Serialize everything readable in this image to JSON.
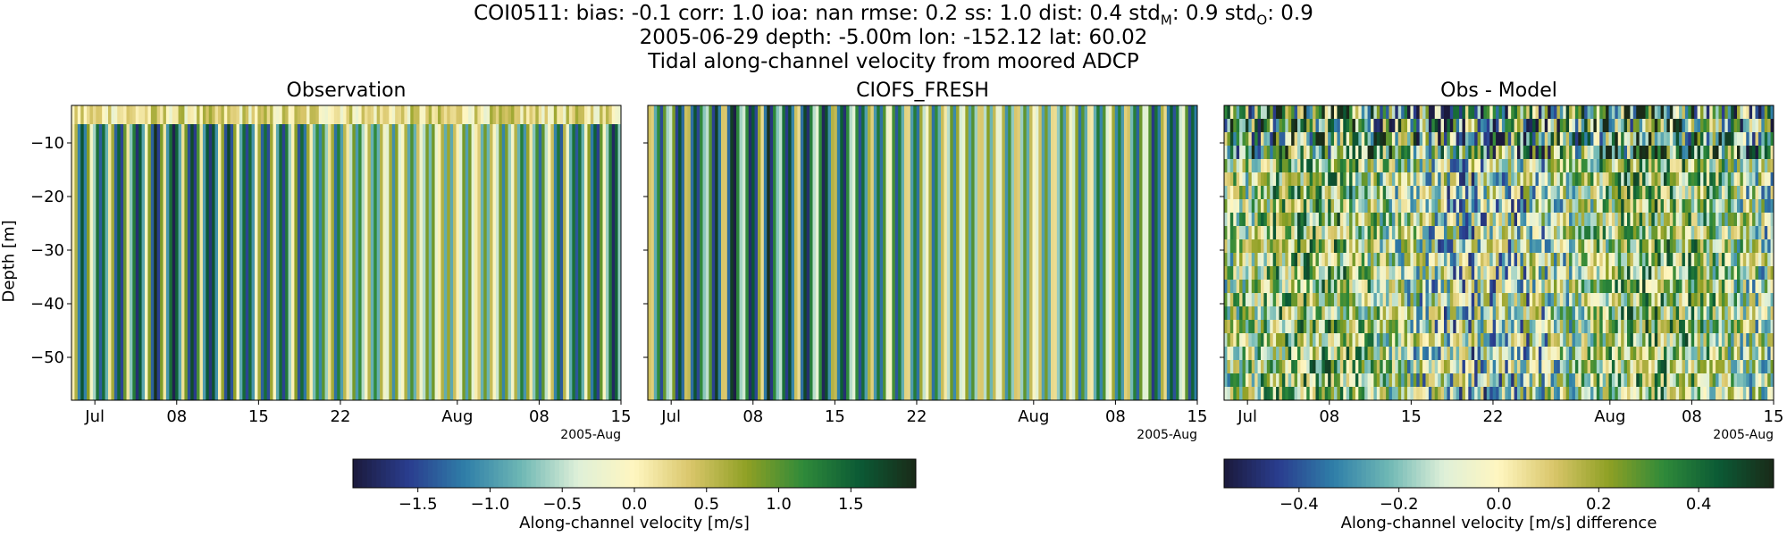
{
  "header": {
    "line1_a": "COI0511: bias: -0.1  corr: 1.0  ioa: nan  rmse: 0.2  ss: 1.0  dist: 0.4  std",
    "line1_sub_m": "M",
    "line1_b": ": 0.9  std",
    "line1_sub_o": "O",
    "line1_c": ": 0.9",
    "line2": "2005-06-29 depth: -5.00m lon: -152.12 lat: 60.02",
    "line3": "Tidal along-channel velocity from moored ADCP"
  },
  "y_axis_label": "Depth [m]",
  "x_offset_label": "2005-Aug",
  "colorbars": [
    {
      "label": "Along-channel velocity [m/s]",
      "range": [
        -1.95,
        1.95
      ],
      "ticks": [
        {
          "value": -1.5,
          "label": "−1.5"
        },
        {
          "value": -1.0,
          "label": "−1.0"
        },
        {
          "value": -0.5,
          "label": "−0.5"
        },
        {
          "value": 0.0,
          "label": "0.0"
        },
        {
          "value": 0.5,
          "label": "0.5"
        },
        {
          "value": 1.0,
          "label": "1.0"
        },
        {
          "value": 1.5,
          "label": "1.5"
        }
      ]
    },
    {
      "label": "Along-channel velocity [m/s] difference",
      "range": [
        -0.55,
        0.55
      ],
      "ticks": [
        {
          "value": -0.4,
          "label": "−0.4"
        },
        {
          "value": -0.2,
          "label": "−0.2"
        },
        {
          "value": 0.0,
          "label": "0.0"
        },
        {
          "value": 0.2,
          "label": "0.2"
        },
        {
          "value": 0.4,
          "label": "0.4"
        }
      ]
    }
  ],
  "colormap": [
    "#1b1a3c",
    "#2a3d8f",
    "#2f7fa8",
    "#6fb8b4",
    "#dff0d8",
    "#fff6c0",
    "#d9c66a",
    "#8fa024",
    "#2f8a3a",
    "#0b5a35",
    "#1a2a18"
  ],
  "chart_data": [
    {
      "type": "heatmap",
      "title": "Observation",
      "x_range": [
        "2005-06-29",
        "2005-08-15"
      ],
      "x_ticks": [
        {
          "date": "2005-07-01",
          "label": "Jul"
        },
        {
          "date": "2005-07-08",
          "label": "08"
        },
        {
          "date": "2005-07-15",
          "label": "15"
        },
        {
          "date": "2005-07-22",
          "label": "22"
        },
        {
          "date": "2005-08-01",
          "label": "Aug"
        },
        {
          "date": "2005-08-08",
          "label": "08"
        },
        {
          "date": "2005-08-15",
          "label": "15"
        }
      ],
      "ylim": [
        -58,
        -3
      ],
      "y_ticks": [
        -10,
        -20,
        -30,
        -40,
        -50
      ],
      "ylabel": "Depth [m]",
      "value_range": [
        -1.95,
        1.95
      ],
      "top_band_depth": -6.5
    },
    {
      "type": "heatmap",
      "title": "CIOFS_FRESH",
      "x_range": [
        "2005-06-29",
        "2005-08-15"
      ],
      "x_ticks": [
        {
          "date": "2005-07-01",
          "label": "Jul"
        },
        {
          "date": "2005-07-08",
          "label": "08"
        },
        {
          "date": "2005-07-15",
          "label": "15"
        },
        {
          "date": "2005-07-22",
          "label": "22"
        },
        {
          "date": "2005-08-01",
          "label": "Aug"
        },
        {
          "date": "2005-08-08",
          "label": "08"
        },
        {
          "date": "2005-08-15",
          "label": "15"
        }
      ],
      "ylim": [
        -58,
        -3
      ],
      "y_ticks": [
        -10,
        -20,
        -30,
        -40,
        -50
      ],
      "value_range": [
        -1.95,
        1.95
      ]
    },
    {
      "type": "heatmap",
      "title": "Obs - Model",
      "x_range": [
        "2005-06-29",
        "2005-08-15"
      ],
      "x_ticks": [
        {
          "date": "2005-07-01",
          "label": "Jul"
        },
        {
          "date": "2005-07-08",
          "label": "08"
        },
        {
          "date": "2005-07-15",
          "label": "15"
        },
        {
          "date": "2005-07-22",
          "label": "22"
        },
        {
          "date": "2005-08-01",
          "label": "Aug"
        },
        {
          "date": "2005-08-08",
          "label": "08"
        },
        {
          "date": "2005-08-15",
          "label": "15"
        }
      ],
      "ylim": [
        -58,
        -3
      ],
      "y_ticks": [
        -10,
        -20,
        -30,
        -40,
        -50
      ],
      "value_range": [
        -0.55,
        0.55
      ]
    }
  ]
}
